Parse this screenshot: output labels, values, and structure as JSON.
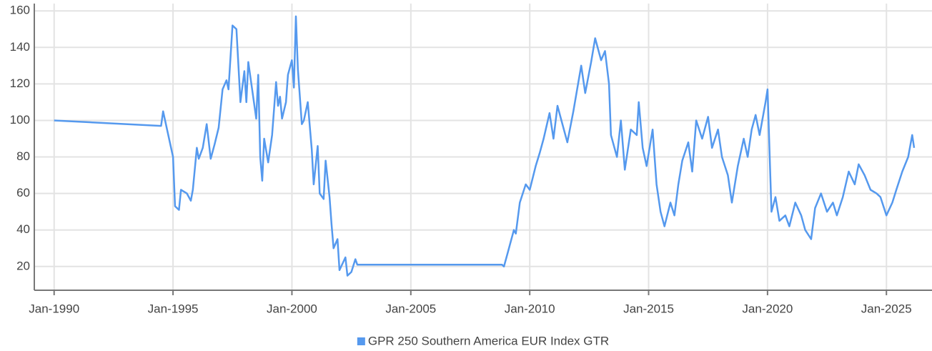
{
  "chart_data": {
    "type": "line",
    "x": [
      "1990-01",
      "1994-07",
      "1994-08",
      "1995-01",
      "1995-02",
      "1995-04",
      "1995-05",
      "1995-08",
      "1995-10",
      "1995-11",
      "1996-01",
      "1996-02",
      "1996-04",
      "1996-06",
      "1996-08",
      "1996-10",
      "1996-12",
      "1997-02",
      "1997-04",
      "1997-05",
      "1997-07",
      "1997-09",
      "1997-11",
      "1998-01",
      "1998-02",
      "1998-03",
      "1998-07",
      "1998-08",
      "1998-09",
      "1998-10",
      "1998-11",
      "1999-01",
      "1999-03",
      "1999-05",
      "1999-06",
      "1999-07",
      "1999-08",
      "1999-10",
      "1999-11",
      "2000-01",
      "2000-02",
      "2000-03",
      "2000-04",
      "2000-06",
      "2000-07",
      "2000-09",
      "2000-11",
      "2000-12",
      "2001-02",
      "2001-03",
      "2001-05",
      "2001-06",
      "2001-08",
      "2001-09",
      "2001-10",
      "2001-12",
      "2002-01",
      "2002-04",
      "2002-05",
      "2002-07",
      "2002-09",
      "2002-10",
      "2008-11",
      "2008-12",
      "2009-02",
      "2009-05",
      "2009-06",
      "2009-08",
      "2009-11",
      "2010-01",
      "2010-04",
      "2010-06",
      "2010-08",
      "2010-11",
      "2011-01",
      "2011-03",
      "2011-05",
      "2011-08",
      "2011-11",
      "2012-03",
      "2012-05",
      "2012-08",
      "2012-10",
      "2013-01",
      "2013-03",
      "2013-05",
      "2013-06",
      "2013-09",
      "2013-11",
      "2014-01",
      "2014-04",
      "2014-07",
      "2014-08",
      "2014-10",
      "2014-12",
      "2015-03",
      "2015-05",
      "2015-07",
      "2015-09",
      "2015-12",
      "2016-02",
      "2016-04",
      "2016-06",
      "2016-09",
      "2016-11",
      "2017-01",
      "2017-04",
      "2017-07",
      "2017-09",
      "2017-12",
      "2018-02",
      "2018-05",
      "2018-07",
      "2018-10",
      "2019-01",
      "2019-03",
      "2019-05",
      "2019-07",
      "2019-09",
      "2019-12",
      "2020-01",
      "2020-03",
      "2020-05",
      "2020-07",
      "2020-10",
      "2020-12",
      "2021-03",
      "2021-06",
      "2021-08",
      "2021-11",
      "2022-01",
      "2022-04",
      "2022-07",
      "2022-10",
      "2022-12",
      "2023-03",
      "2023-06",
      "2023-09",
      "2023-11",
      "2024-02",
      "2024-05",
      "2024-08",
      "2024-10",
      "2025-01",
      "2025-04",
      "2025-06",
      "2025-09",
      "2025-12",
      "2026-02",
      "2026-03"
    ],
    "series": [
      {
        "name": "GPR 250 Southern America EUR Index GTR",
        "color": "#5599ee",
        "values": [
          100,
          97,
          105,
          80,
          53,
          51,
          62,
          60,
          56,
          62,
          85,
          79,
          85,
          98,
          79,
          87,
          96,
          117,
          122,
          117,
          152,
          150,
          110,
          127,
          110,
          132,
          101,
          125,
          80,
          67,
          90,
          77,
          92,
          121,
          108,
          113,
          101,
          110,
          125,
          133,
          118,
          157,
          128,
          98,
          100,
          110,
          84,
          65,
          86,
          60,
          57,
          78,
          58,
          43,
          30,
          35,
          18,
          25,
          15,
          17,
          24,
          21,
          21,
          20,
          28,
          40,
          38,
          55,
          65,
          62,
          75,
          82,
          90,
          104,
          90,
          108,
          100,
          88,
          105,
          130,
          115,
          132,
          145,
          133,
          138,
          120,
          92,
          80,
          100,
          73,
          95,
          92,
          110,
          85,
          75,
          95,
          65,
          50,
          42,
          55,
          48,
          65,
          78,
          88,
          72,
          100,
          90,
          102,
          85,
          95,
          80,
          70,
          55,
          75,
          90,
          80,
          95,
          103,
          92,
          110,
          117,
          50,
          58,
          45,
          48,
          42,
          55,
          48,
          40,
          35,
          52,
          60,
          50,
          55,
          48,
          58,
          72,
          65,
          76,
          70,
          62,
          60,
          58,
          48,
          55,
          62,
          72,
          80,
          92,
          85
        ]
      }
    ],
    "xlim": [
      "1989-03",
      "2026-12"
    ],
    "xticks": [
      {
        "value": "1990-01",
        "label": "Jan-1990"
      },
      {
        "value": "1995-01",
        "label": "Jan-1995"
      },
      {
        "value": "2000-01",
        "label": "Jan-2000"
      },
      {
        "value": "2005-01",
        "label": "Jan-2005"
      },
      {
        "value": "2010-01",
        "label": "Jan-2010"
      },
      {
        "value": "2015-01",
        "label": "Jan-2015"
      },
      {
        "value": "2020-01",
        "label": "Jan-2020"
      },
      {
        "value": "2025-01",
        "label": "Jan-2025"
      }
    ],
    "ylim": [
      7,
      164
    ],
    "yticks": [
      20,
      40,
      60,
      80,
      100,
      120,
      140,
      160
    ],
    "grid": true,
    "legend": "bottom"
  }
}
